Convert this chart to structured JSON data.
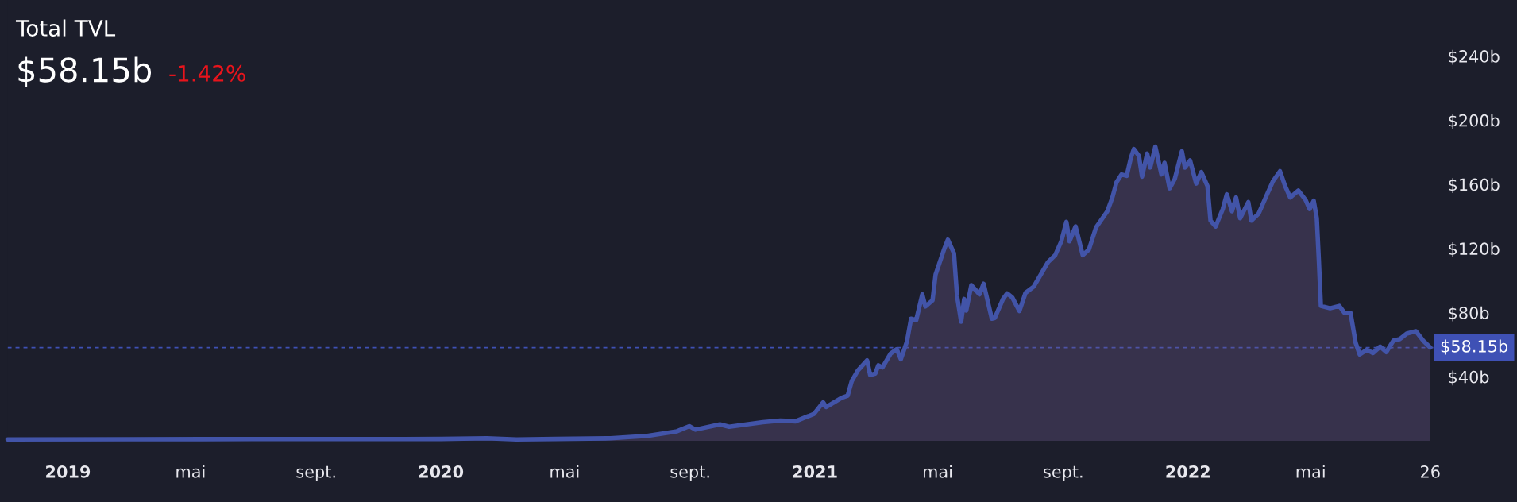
{
  "chart_data": {
    "type": "area",
    "title": "Total TVL",
    "subtitle": "$58.15b",
    "annotations": [
      "-1.42%"
    ],
    "x": [
      "2018-11-03",
      "2019-03-01",
      "2019-07-01",
      "2019-11-01",
      "2020-01-01",
      "2020-02-15",
      "2020-03-15",
      "2020-04-22",
      "2020-06-15",
      "2020-07-21",
      "2020-08-19",
      "2020-08-31",
      "2020-09-06",
      "2020-09-30",
      "2020-10-09",
      "2020-11-11",
      "2020-11-28",
      "2020-12-13",
      "2020-12-31",
      "2021-01-09",
      "2021-01-12",
      "2021-01-27",
      "2021-02-02",
      "2021-02-06",
      "2021-02-12",
      "2021-02-21",
      "2021-02-24",
      "2021-03-01",
      "2021-03-04",
      "2021-03-08",
      "2021-03-16",
      "2021-03-22",
      "2021-03-26",
      "2021-04-01",
      "2021-04-05",
      "2021-04-10",
      "2021-04-16",
      "2021-04-19",
      "2021-04-26",
      "2021-04-29",
      "2021-05-07",
      "2021-05-11",
      "2021-05-17",
      "2021-05-20",
      "2021-05-24",
      "2021-05-27",
      "2021-05-29",
      "2021-06-03",
      "2021-06-11",
      "2021-06-15",
      "2021-06-23",
      "2021-06-26",
      "2021-07-04",
      "2021-07-08",
      "2021-07-13",
      "2021-07-20",
      "2021-07-26",
      "2021-08-03",
      "2021-08-17",
      "2021-08-24",
      "2021-08-30",
      "2021-09-04",
      "2021-09-07",
      "2021-09-13",
      "2021-09-20",
      "2021-09-26",
      "2021-10-03",
      "2021-10-14",
      "2021-10-19",
      "2021-10-23",
      "2021-10-28",
      "2021-11-02",
      "2021-11-06",
      "2021-11-09",
      "2021-11-14",
      "2021-11-17",
      "2021-11-22",
      "2021-11-25",
      "2021-11-30",
      "2021-12-06",
      "2021-12-09",
      "2021-12-14",
      "2021-12-19",
      "2021-12-26",
      "2021-12-29",
      "2022-01-03",
      "2022-01-09",
      "2022-01-14",
      "2022-01-20",
      "2022-01-23",
      "2022-01-28",
      "2022-02-04",
      "2022-02-08",
      "2022-02-13",
      "2022-02-17",
      "2022-02-21",
      "2022-03-01",
      "2022-03-04",
      "2022-03-11",
      "2022-03-18",
      "2022-03-25",
      "2022-04-01",
      "2022-04-06",
      "2022-04-11",
      "2022-04-19",
      "2022-04-26",
      "2022-04-30",
      "2022-05-04",
      "2022-05-07",
      "2022-05-09",
      "2022-05-11",
      "2022-05-20",
      "2022-05-29",
      "2022-06-03",
      "2022-06-09",
      "2022-06-14",
      "2022-06-18",
      "2022-06-25",
      "2022-07-01",
      "2022-07-08",
      "2022-07-14",
      "2022-07-21",
      "2022-07-27",
      "2022-08-03",
      "2022-08-12",
      "2022-08-19",
      "2022-08-26"
    ],
    "series": [
      {
        "color": "#4254a8",
        "values": [
          0.9,
          1.0,
          1.1,
          1.1,
          1.2,
          1.6,
          0.9,
          1.2,
          1.6,
          3.1,
          6.0,
          9.2,
          7.0,
          10.3,
          8.8,
          11.7,
          12.6,
          12.2,
          16.8,
          24.0,
          21.1,
          26.8,
          28.2,
          37.3,
          43.9,
          50.2,
          41.1,
          42.0,
          47.1,
          45.8,
          54.4,
          57.2,
          50.9,
          62.0,
          76.2,
          75.2,
          91.4,
          83.8,
          87.6,
          103.7,
          118.9,
          125.5,
          117.0,
          90.4,
          74.3,
          88.5,
          81.3,
          97.1,
          91.4,
          98.0,
          76.2,
          76.7,
          88.5,
          92.0,
          89.5,
          81.0,
          92.3,
          96.2,
          111.5,
          115.8,
          124.5,
          136.6,
          124.5,
          133.7,
          115.8,
          119.3,
          133.1,
          143.2,
          151.8,
          161.3,
          166.2,
          165.3,
          176.3,
          182.0,
          177.7,
          164.8,
          179.2,
          170.5,
          183.5,
          166.2,
          173.4,
          157.5,
          163.3,
          180.6,
          170.5,
          174.9,
          160.5,
          167.7,
          159.0,
          137.4,
          133.7,
          144.6,
          153.8,
          143.2,
          151.8,
          138.9,
          148.9,
          137.4,
          141.7,
          151.8,
          161.9,
          168.2,
          159.0,
          151.8,
          156.1,
          150.3,
          144.6,
          149.8,
          138.9,
          112.9,
          84.2,
          82.7,
          84.2,
          79.9,
          79.9,
          61.2,
          53.9,
          56.8,
          54.8,
          58.8,
          55.4,
          62.6,
          63.4,
          66.9,
          68.4,
          62.6,
          58.2
        ]
      }
    ],
    "xlim": [
      "2018-11-03",
      "2022-08-30"
    ],
    "xticks": [
      {
        "value": "2019-01-01",
        "label": "2019"
      },
      {
        "value": "2019-05-01",
        "label": "mai"
      },
      {
        "value": "2019-09-01",
        "label": "sept."
      },
      {
        "value": "2020-01-01",
        "label": "2020"
      },
      {
        "value": "2020-05-01",
        "label": "mai"
      },
      {
        "value": "2020-09-01",
        "label": "sept."
      },
      {
        "value": "2021-01-01",
        "label": "2021"
      },
      {
        "value": "2021-05-01",
        "label": "mai"
      },
      {
        "value": "2021-09-01",
        "label": "sept."
      },
      {
        "value": "2022-01-01",
        "label": "2022"
      },
      {
        "value": "2022-05-01",
        "label": "mai"
      },
      {
        "value": "2022-08-26",
        "label": "26"
      }
    ],
    "ylim": [
      0,
      275
    ],
    "yticks": [
      {
        "value": 40,
        "label": "$40b"
      },
      {
        "value": 80,
        "label": "$80b"
      },
      {
        "value": 120,
        "label": "$120b"
      },
      {
        "value": 160,
        "label": "$160b"
      },
      {
        "value": 200,
        "label": "$200b"
      },
      {
        "value": 240,
        "label": "$240b"
      }
    ],
    "ref_lines": [
      {
        "axis": "y",
        "value": 58.15,
        "label": "$58.15b",
        "color": "#3f51b5",
        "line_style": "dashed"
      }
    ],
    "grid": false,
    "legend": false
  }
}
